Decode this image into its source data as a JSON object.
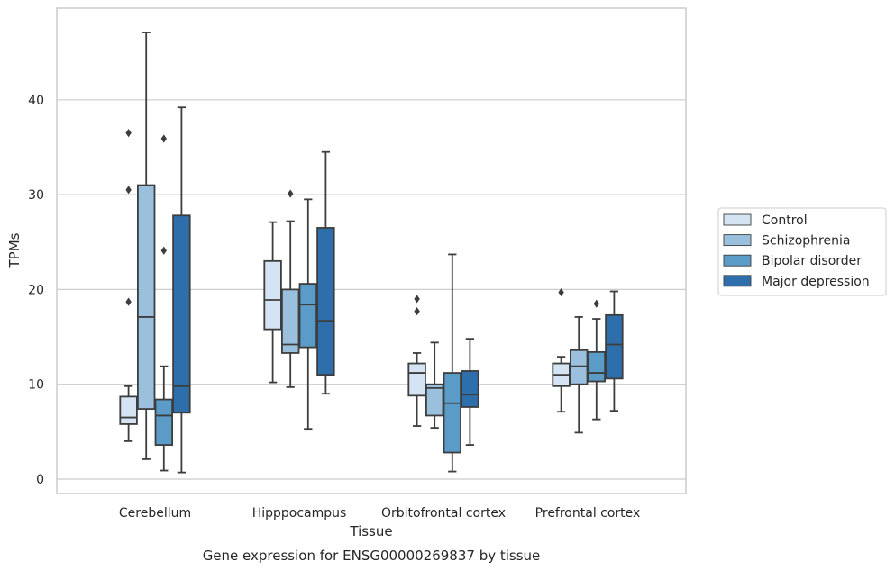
{
  "chart_data": {
    "type": "box",
    "title": "",
    "caption": "Gene expression for ENSG00000269837 by tissue",
    "xlabel": "Tissue",
    "ylabel": "TPMs",
    "ylim": [
      -1.5,
      49.5
    ],
    "yticks": [
      0,
      10,
      20,
      30,
      40
    ],
    "grid": "horizontal",
    "legend_position": "right",
    "categories": [
      "Cerebellum",
      "Hipppocampus",
      "Orbitofrontal cortex",
      "Prefrontal cortex"
    ],
    "series": [
      {
        "name": "Control",
        "color": "#d4e4f2",
        "boxes": [
          {
            "whisker_low": 4.0,
            "q1": 5.8,
            "median": 6.5,
            "q3": 8.7,
            "whisker_high": 9.8,
            "outliers": [
              18.7,
              30.5,
              36.5
            ]
          },
          {
            "whisker_low": 10.2,
            "q1": 15.8,
            "median": 18.9,
            "q3": 23.0,
            "whisker_high": 27.1,
            "outliers": []
          },
          {
            "whisker_low": 5.6,
            "q1": 8.8,
            "median": 11.2,
            "q3": 12.2,
            "whisker_high": 13.3,
            "outliers": [
              17.7,
              19.0
            ]
          },
          {
            "whisker_low": 7.1,
            "q1": 9.8,
            "median": 11.0,
            "q3": 12.2,
            "whisker_high": 12.9,
            "outliers": [
              19.7
            ]
          }
        ]
      },
      {
        "name": "Schizophrenia",
        "color": "#9ac0dd",
        "boxes": [
          {
            "whisker_low": 2.1,
            "q1": 7.4,
            "median": 17.1,
            "q3": 31.0,
            "whisker_high": 47.1,
            "outliers": []
          },
          {
            "whisker_low": 9.7,
            "q1": 13.3,
            "median": 14.2,
            "q3": 20.0,
            "whisker_high": 27.2,
            "outliers": [
              30.1
            ]
          },
          {
            "whisker_low": 5.4,
            "q1": 6.7,
            "median": 9.6,
            "q3": 10.0,
            "whisker_high": 14.4,
            "outliers": []
          },
          {
            "whisker_low": 4.9,
            "q1": 10.0,
            "median": 11.9,
            "q3": 13.6,
            "whisker_high": 17.1,
            "outliers": []
          }
        ]
      },
      {
        "name": "Bipolar disorder",
        "color": "#5b9bc8",
        "boxes": [
          {
            "whisker_low": 0.9,
            "q1": 3.6,
            "median": 6.7,
            "q3": 8.4,
            "whisker_high": 11.9,
            "outliers": [
              24.1,
              35.9
            ]
          },
          {
            "whisker_low": 5.3,
            "q1": 13.9,
            "median": 18.4,
            "q3": 20.6,
            "whisker_high": 29.5,
            "outliers": []
          },
          {
            "whisker_low": 0.8,
            "q1": 2.8,
            "median": 8.0,
            "q3": 11.2,
            "whisker_high": 23.7,
            "outliers": []
          },
          {
            "whisker_low": 6.3,
            "q1": 10.3,
            "median": 11.2,
            "q3": 13.4,
            "whisker_high": 16.9,
            "outliers": [
              18.5
            ]
          }
        ]
      },
      {
        "name": "Major depression",
        "color": "#2e6fab",
        "boxes": [
          {
            "whisker_low": 0.7,
            "q1": 7.0,
            "median": 9.8,
            "q3": 27.8,
            "whisker_high": 39.2,
            "outliers": []
          },
          {
            "whisker_low": 9.0,
            "q1": 11.0,
            "median": 16.7,
            "q3": 26.5,
            "whisker_high": 34.5,
            "outliers": []
          },
          {
            "whisker_low": 3.6,
            "q1": 7.6,
            "median": 8.9,
            "q3": 11.4,
            "whisker_high": 14.8,
            "outliers": []
          },
          {
            "whisker_low": 7.2,
            "q1": 10.6,
            "median": 14.2,
            "q3": 17.3,
            "whisker_high": 19.8,
            "outliers": []
          }
        ]
      }
    ],
    "style": {
      "edge_color": "#3d3d3d",
      "grid_color": "#cccccc",
      "frame_color": "#cccccc",
      "text_color": "#262626"
    }
  }
}
